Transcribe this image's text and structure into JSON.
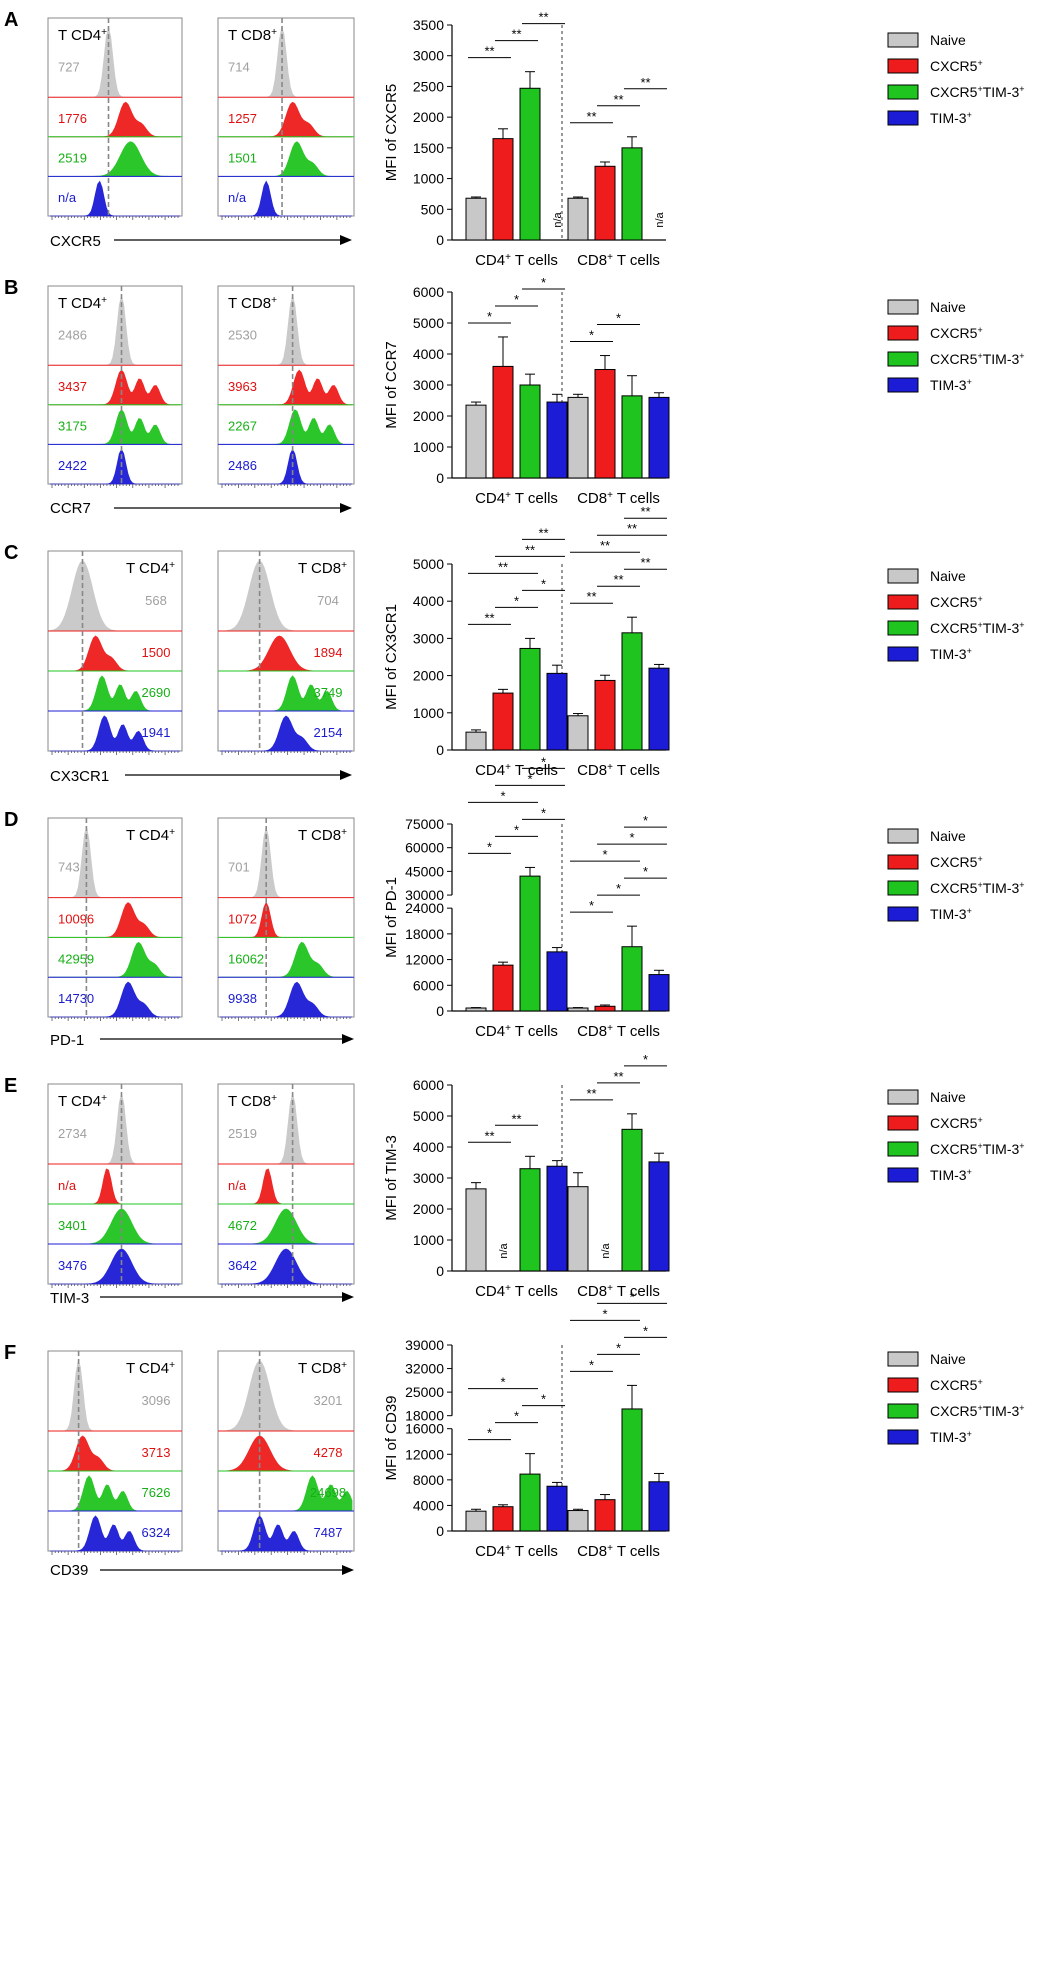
{
  "colors": {
    "naive": "#c8c8c8",
    "cxcr5": "#ee1c1c",
    "double": "#1fc41f",
    "tim3": "#1c1cd6",
    "naive_text": "#a0a0a0",
    "cxcr5_text": "#e01010",
    "double_text": "#16b016",
    "tim3_text": "#1a1ad0"
  },
  "legend": {
    "naive": "Naive",
    "cxcr5": "CXCR5",
    "cxcr5_sup": "+",
    "double_a": "CXCR5",
    "double_sup1": "+",
    "double_b": "TIM-3",
    "double_sup2": "+",
    "tim3": "TIM-3",
    "tim3_sup": "+"
  },
  "histogram_labels": {
    "cd4": "T CD4",
    "cd8": "T CD8",
    "sup": "+"
  },
  "chart_data": [
    {
      "panel": "A",
      "type": "bar",
      "marker": "CXCR5",
      "ylabel": "MFI of CXCR5",
      "yticks": [
        "0",
        "500",
        "1000",
        "1500",
        "2000",
        "2500",
        "3000",
        "3500"
      ],
      "ylim": [
        0,
        3500
      ],
      "groups": [
        "CD4",
        "CD8"
      ],
      "group_suffix": "T cells",
      "series": [
        "Naive",
        "CXCR5+",
        "CXCR5+TIM-3+",
        "TIM-3+"
      ],
      "values": [
        [
          680,
          1650,
          2470,
          null
        ],
        [
          680,
          1200,
          1500,
          null
        ]
      ],
      "errors": [
        [
          20,
          160,
          270,
          null
        ],
        [
          20,
          70,
          180,
          null
        ]
      ],
      "na_label": "n/a",
      "sig": [
        [
          "**",
          "**",
          "**"
        ],
        [
          "**",
          "**",
          "**"
        ]
      ],
      "hist_cd4": [
        {
          "label": "727",
          "peak": 0.45,
          "shape": "narrow"
        },
        {
          "label": "1776",
          "peak": 0.58,
          "shape": "bump"
        },
        {
          "label": "2519",
          "peak": 0.62,
          "shape": "wide"
        },
        {
          "label": "n/a",
          "peak": 0.38,
          "shape": "narrow"
        }
      ],
      "hist_cd8": [
        {
          "label": "714",
          "peak": 0.47,
          "shape": "narrow"
        },
        {
          "label": "1257",
          "peak": 0.55,
          "shape": "bump"
        },
        {
          "label": "1501",
          "peak": 0.58,
          "shape": "bump"
        },
        {
          "label": "n/a",
          "peak": 0.35,
          "shape": "narrow"
        }
      ]
    },
    {
      "panel": "B",
      "type": "bar",
      "marker": "CCR7",
      "ylabel": "MFI of CCR7",
      "yticks": [
        "0",
        "1000",
        "2000",
        "3000",
        "4000",
        "5000",
        "6000"
      ],
      "ylim": [
        0,
        6000
      ],
      "groups": [
        "CD4",
        "CD8"
      ],
      "group_suffix": "T cells",
      "series": [
        "Naive",
        "CXCR5+",
        "CXCR5+TIM-3+",
        "TIM-3+"
      ],
      "values": [
        [
          2350,
          3600,
          3000,
          2450
        ],
        [
          2600,
          3500,
          2650,
          2600
        ]
      ],
      "errors": [
        [
          100,
          950,
          350,
          250
        ],
        [
          100,
          450,
          650,
          150
        ]
      ],
      "sig": [
        [
          "*",
          "*",
          "*"
        ],
        [
          "*",
          "*"
        ]
      ],
      "hist_cd4": [
        {
          "label": "2486",
          "peak": 0.55,
          "shape": "narrow"
        },
        {
          "label": "3437",
          "peak": 0.55,
          "shape": "multi"
        },
        {
          "label": "3175",
          "peak": 0.55,
          "shape": "multi"
        },
        {
          "label": "2422",
          "peak": 0.55,
          "shape": "narrow"
        }
      ],
      "hist_cd8": [
        {
          "label": "2530",
          "peak": 0.55,
          "shape": "narrow"
        },
        {
          "label": "3963",
          "peak": 0.6,
          "shape": "multi"
        },
        {
          "label": "2267",
          "peak": 0.57,
          "shape": "multi"
        },
        {
          "label": "2486",
          "peak": 0.55,
          "shape": "narrow"
        }
      ]
    },
    {
      "panel": "C",
      "type": "bar",
      "marker": "CX3CR1",
      "ylabel": "MFI of CX3CR1",
      "yticks": [
        "0",
        "1000",
        "2000",
        "3000",
        "4000",
        "5000"
      ],
      "ylim": [
        0,
        5000
      ],
      "groups": [
        "CD4",
        "CD8"
      ],
      "group_suffix": "T cells",
      "series": [
        "Naive",
        "CXCR5+",
        "CXCR5+TIM-3+",
        "TIM-3+"
      ],
      "values": [
        [
          480,
          1530,
          2730,
          2060
        ],
        [
          920,
          1870,
          3150,
          2200
        ]
      ],
      "errors": [
        [
          60,
          100,
          270,
          220
        ],
        [
          60,
          140,
          420,
          100
        ]
      ],
      "sig": [
        [
          "**",
          "*",
          "*",
          "**",
          "**",
          "**"
        ],
        [
          "**",
          "**",
          "**",
          "**",
          "**",
          "**"
        ]
      ],
      "hist_cd4": [
        {
          "label": "568",
          "peak": 0.25,
          "shape": "wide"
        },
        {
          "label": "1500",
          "peak": 0.35,
          "shape": "bump"
        },
        {
          "label": "2690",
          "peak": 0.4,
          "shape": "multi"
        },
        {
          "label": "1941",
          "peak": 0.42,
          "shape": "multi"
        }
      ],
      "hist_cd8": [
        {
          "label": "704",
          "peak": 0.3,
          "shape": "wide"
        },
        {
          "label": "1894",
          "peak": 0.45,
          "shape": "wide"
        },
        {
          "label": "3749",
          "peak": 0.55,
          "shape": "multi"
        },
        {
          "label": "2154",
          "peak": 0.5,
          "shape": "bump"
        }
      ]
    },
    {
      "panel": "D",
      "type": "bar",
      "marker": "PD-1",
      "ylabel": "MFI of PD-1",
      "yticks_lower": [
        "0",
        "6000",
        "12000",
        "18000",
        "24000"
      ],
      "yticks_upper": [
        "30000",
        "45000",
        "60000",
        "75000"
      ],
      "groups": [
        "CD4",
        "CD8"
      ],
      "group_suffix": "T cells",
      "series": [
        "Naive",
        "CXCR5+",
        "CXCR5+TIM-3+",
        "TIM-3+"
      ],
      "values": [
        [
          700,
          10700,
          42000,
          13800
        ],
        [
          700,
          1100,
          15000,
          8500
        ]
      ],
      "errors": [
        [
          100,
          700,
          5500,
          1000
        ],
        [
          100,
          300,
          4800,
          1000
        ]
      ],
      "sig": [
        [
          "*",
          "*",
          "*",
          "*",
          "*",
          "*"
        ],
        [
          "*",
          "*",
          "*",
          "*",
          "*",
          "*"
        ]
      ],
      "hist_cd4": [
        {
          "label": "743",
          "peak": 0.28,
          "shape": "narrow"
        },
        {
          "label": "10096",
          "peak": 0.6,
          "shape": "bump"
        },
        {
          "label": "42959",
          "peak": 0.68,
          "shape": "bump"
        },
        {
          "label": "14730",
          "peak": 0.6,
          "shape": "bump"
        }
      ],
      "hist_cd8": [
        {
          "label": "701",
          "peak": 0.35,
          "shape": "narrow"
        },
        {
          "label": "1072",
          "peak": 0.35,
          "shape": "narrow"
        },
        {
          "label": "16062",
          "peak": 0.62,
          "shape": "bump"
        },
        {
          "label": "9938",
          "peak": 0.58,
          "shape": "bump"
        }
      ]
    },
    {
      "panel": "E",
      "type": "bar",
      "marker": "TIM-3",
      "ylabel": "MFI of TIM-3",
      "yticks": [
        "0",
        "1000",
        "2000",
        "3000",
        "4000",
        "5000",
        "6000"
      ],
      "ylim": [
        0,
        6000
      ],
      "groups": [
        "CD4",
        "CD8"
      ],
      "group_suffix": "T cells",
      "series": [
        "Naive",
        "CXCR5+",
        "CXCR5+TIM-3+",
        "TIM-3+"
      ],
      "values": [
        [
          2650,
          null,
          3300,
          3380
        ],
        [
          2720,
          null,
          4570,
          3520
        ]
      ],
      "errors": [
        [
          200,
          null,
          400,
          180
        ],
        [
          450,
          null,
          500,
          280
        ]
      ],
      "na_label": "n/a",
      "sig": [
        [
          "**",
          "**"
        ],
        [
          "**",
          "**",
          "*"
        ]
      ],
      "hist_cd4": [
        {
          "label": "2734",
          "peak": 0.55,
          "shape": "narrow"
        },
        {
          "label": "n/a",
          "peak": 0.44,
          "shape": "narrow"
        },
        {
          "label": "3401",
          "peak": 0.55,
          "shape": "wide"
        },
        {
          "label": "3476",
          "peak": 0.55,
          "shape": "wide"
        }
      ],
      "hist_cd8": [
        {
          "label": "2519",
          "peak": 0.55,
          "shape": "narrow"
        },
        {
          "label": "n/a",
          "peak": 0.36,
          "shape": "narrow"
        },
        {
          "label": "4672",
          "peak": 0.5,
          "shape": "wide"
        },
        {
          "label": "3642",
          "peak": 0.5,
          "shape": "wide"
        }
      ]
    },
    {
      "panel": "F",
      "type": "bar",
      "marker": "CD39",
      "ylabel": "MFI of CD39",
      "yticks_lower": [
        "0",
        "4000",
        "8000",
        "12000",
        "16000"
      ],
      "yticks_upper": [
        "18000",
        "25000",
        "32000",
        "39000"
      ],
      "groups": [
        "CD4",
        "CD8"
      ],
      "group_suffix": "T cells",
      "series": [
        "Naive",
        "CXCR5+",
        "CXCR5+TIM-3+",
        "TIM-3+"
      ],
      "values": [
        [
          3100,
          3800,
          8900,
          7000
        ],
        [
          3200,
          4900,
          20000,
          7700
        ]
      ],
      "errors": [
        [
          300,
          300,
          3200,
          600
        ],
        [
          200,
          800,
          7000,
          1300
        ]
      ],
      "sig": [
        [
          "*",
          "*",
          "*",
          "*"
        ],
        [
          "*",
          "*",
          "*",
          "*",
          "*"
        ]
      ],
      "hist_cd4": [
        {
          "label": "3096",
          "peak": 0.22,
          "shape": "narrow"
        },
        {
          "label": "3713",
          "peak": 0.25,
          "shape": "bump"
        },
        {
          "label": "7626",
          "peak": 0.3,
          "shape": "multi"
        },
        {
          "label": "6324",
          "peak": 0.35,
          "shape": "multi"
        }
      ],
      "hist_cd8": [
        {
          "label": "3201",
          "peak": 0.3,
          "shape": "wide"
        },
        {
          "label": "4278",
          "peak": 0.3,
          "shape": "wide"
        },
        {
          "label": "24698",
          "peak": 0.7,
          "shape": "multi"
        },
        {
          "label": "7487",
          "peak": 0.3,
          "shape": "multi"
        }
      ]
    }
  ]
}
